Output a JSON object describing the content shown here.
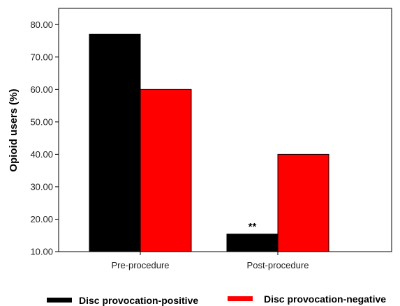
{
  "chart_data": {
    "type": "bar",
    "categories": [
      "Pre-procedure",
      "Post-procedure"
    ],
    "series": [
      {
        "name": "Disc provocation-positive",
        "values": [
          77.0,
          15.4
        ],
        "color": "#000000"
      },
      {
        "name": "Disc provocation-negative",
        "values": [
          60.0,
          40.0
        ],
        "color": "#ff0000"
      }
    ],
    "ylabel": "Opioid users (%)",
    "xlabel": "",
    "ylim": [
      10,
      85
    ],
    "yticks": [
      "10.00",
      "20.00",
      "30.00",
      "40.00",
      "50.00",
      "60.00",
      "70.00",
      "80.00"
    ],
    "annotations": [
      {
        "text": "**",
        "category": "Post-procedure",
        "series": "Disc provocation-positive"
      }
    ],
    "legend_position": "bottom",
    "grid": false
  }
}
